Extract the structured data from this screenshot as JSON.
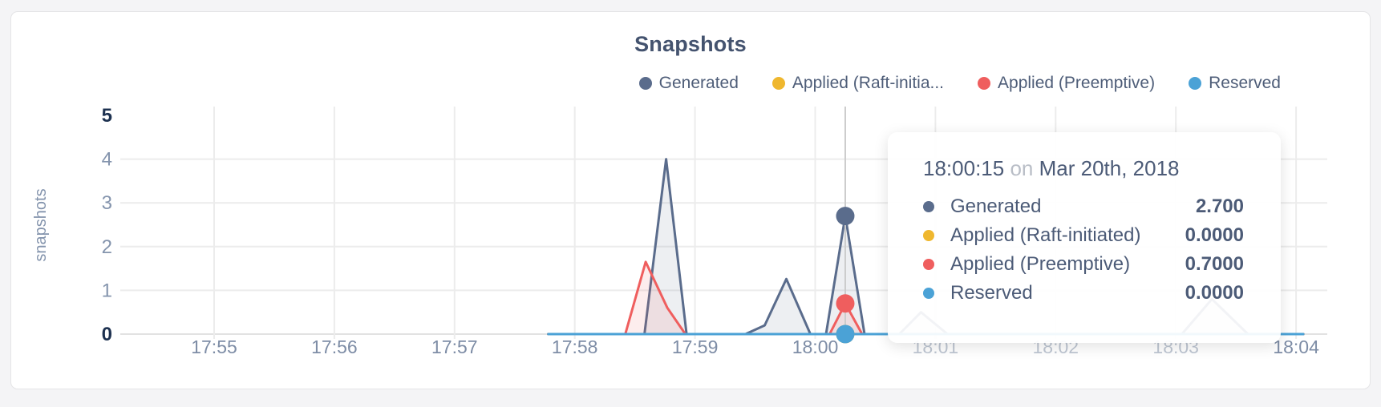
{
  "page": {
    "title": "Snapshots"
  },
  "chart_data": {
    "type": "area",
    "title": "Snapshots",
    "xlabel": "",
    "ylabel": "snapshots",
    "ylim": [
      0,
      5
    ],
    "y_ticks": [
      0,
      1,
      2,
      3,
      4,
      5
    ],
    "x_ticks": [
      "17:55",
      "17:56",
      "17:57",
      "17:58",
      "17:59",
      "18:00",
      "18:01",
      "18:02",
      "18:03",
      "18:04"
    ],
    "x_unit": "decimal minutes after 17:55",
    "grid": true,
    "legend_position": "top-right",
    "series": [
      {
        "name": "Generated",
        "color": "#5a6c8c",
        "points": [
          [
            2.78,
            0
          ],
          [
            3.58,
            0
          ],
          [
            3.76,
            4
          ],
          [
            3.93,
            0
          ],
          [
            4.42,
            0
          ],
          [
            4.58,
            0.2
          ],
          [
            4.76,
            1.26
          ],
          [
            4.96,
            0
          ],
          [
            5.09,
            0
          ],
          [
            5.25,
            2.7
          ],
          [
            5.41,
            0
          ],
          [
            5.7,
            0
          ],
          [
            5.88,
            0.5
          ],
          [
            6.1,
            0
          ],
          [
            8.05,
            0
          ],
          [
            8.3,
            0.8
          ],
          [
            8.6,
            0
          ],
          [
            9.06,
            0
          ]
        ]
      },
      {
        "name": "Applied (Raft-initiated)",
        "color": "#efb72e",
        "points": [
          [
            2.78,
            0
          ],
          [
            9.06,
            0
          ]
        ]
      },
      {
        "name": "Applied (Preemptive)",
        "color": "#ef5e5e",
        "points": [
          [
            2.78,
            0
          ],
          [
            3.42,
            0
          ],
          [
            3.59,
            1.65
          ],
          [
            3.77,
            0.6
          ],
          [
            3.92,
            0
          ],
          [
            5.12,
            0
          ],
          [
            5.25,
            0.7
          ],
          [
            5.39,
            0
          ],
          [
            9.06,
            0
          ]
        ]
      },
      {
        "name": "Reserved",
        "color": "#4ba2d6",
        "points": [
          [
            2.78,
            0
          ],
          [
            9.06,
            0
          ]
        ]
      }
    ]
  },
  "legend": {
    "items": [
      {
        "label": "Generated",
        "color": "#5a6c8c"
      },
      {
        "label": "Applied (Raft-initia...",
        "color": "#efb72e"
      },
      {
        "label": "Applied (Preemptive)",
        "color": "#ef5e5e"
      },
      {
        "label": "Reserved",
        "color": "#4ba2d6"
      }
    ]
  },
  "tooltip": {
    "time": "18:00:15",
    "connector": "on",
    "date": "Mar 20th, 2018",
    "hover_x": 5.25,
    "rows": [
      {
        "label": "Generated",
        "color": "#5a6c8c",
        "value": "2.700"
      },
      {
        "label": "Applied (Raft-initiated)",
        "color": "#efb72e",
        "value": "0.0000"
      },
      {
        "label": "Applied (Preemptive)",
        "color": "#ef5e5e",
        "value": "0.7000"
      },
      {
        "label": "Reserved",
        "color": "#4ba2d6",
        "value": "0.0000"
      }
    ]
  },
  "colors": {
    "title": "#44536f",
    "axis_minor_label": "#8494ad",
    "axis_bold_label": "#1d3150",
    "x_tick_label": "#7e8da6",
    "gridline": "#ececec",
    "axis_baseline": "#e2e2e2",
    "hover_line": "#cccccc",
    "card_background": "#ffffff",
    "page_background": "#f4f4f6"
  }
}
